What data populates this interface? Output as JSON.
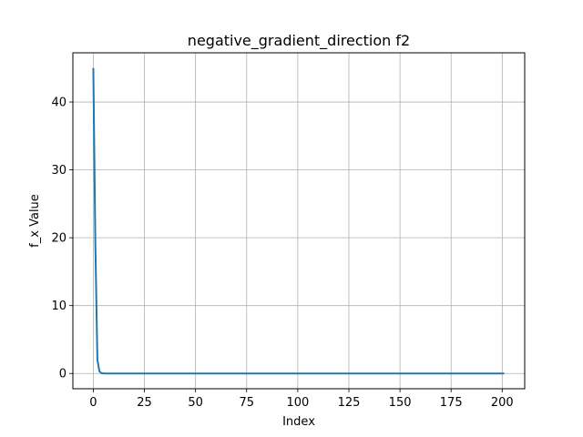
{
  "chart_data": {
    "type": "line",
    "title": "negative_gradient_direction f2",
    "xlabel": "Index",
    "ylabel": "f_x Value",
    "xlim": [
      -10,
      211
    ],
    "ylim": [
      -2.25,
      47.25
    ],
    "xticks": [
      0,
      25,
      50,
      75,
      100,
      125,
      150,
      175,
      200
    ],
    "yticks": [
      0,
      10,
      20,
      30,
      40
    ],
    "grid": true,
    "series": [
      {
        "color": "#1f77b4",
        "x": [
          0,
          1,
          2,
          3,
          4,
          5,
          6,
          10,
          20,
          50,
          100,
          150,
          201
        ],
        "y": [
          45,
          19,
          2,
          0.3,
          0.05,
          0.01,
          0,
          0,
          0,
          0,
          0,
          0,
          0
        ]
      }
    ]
  }
}
